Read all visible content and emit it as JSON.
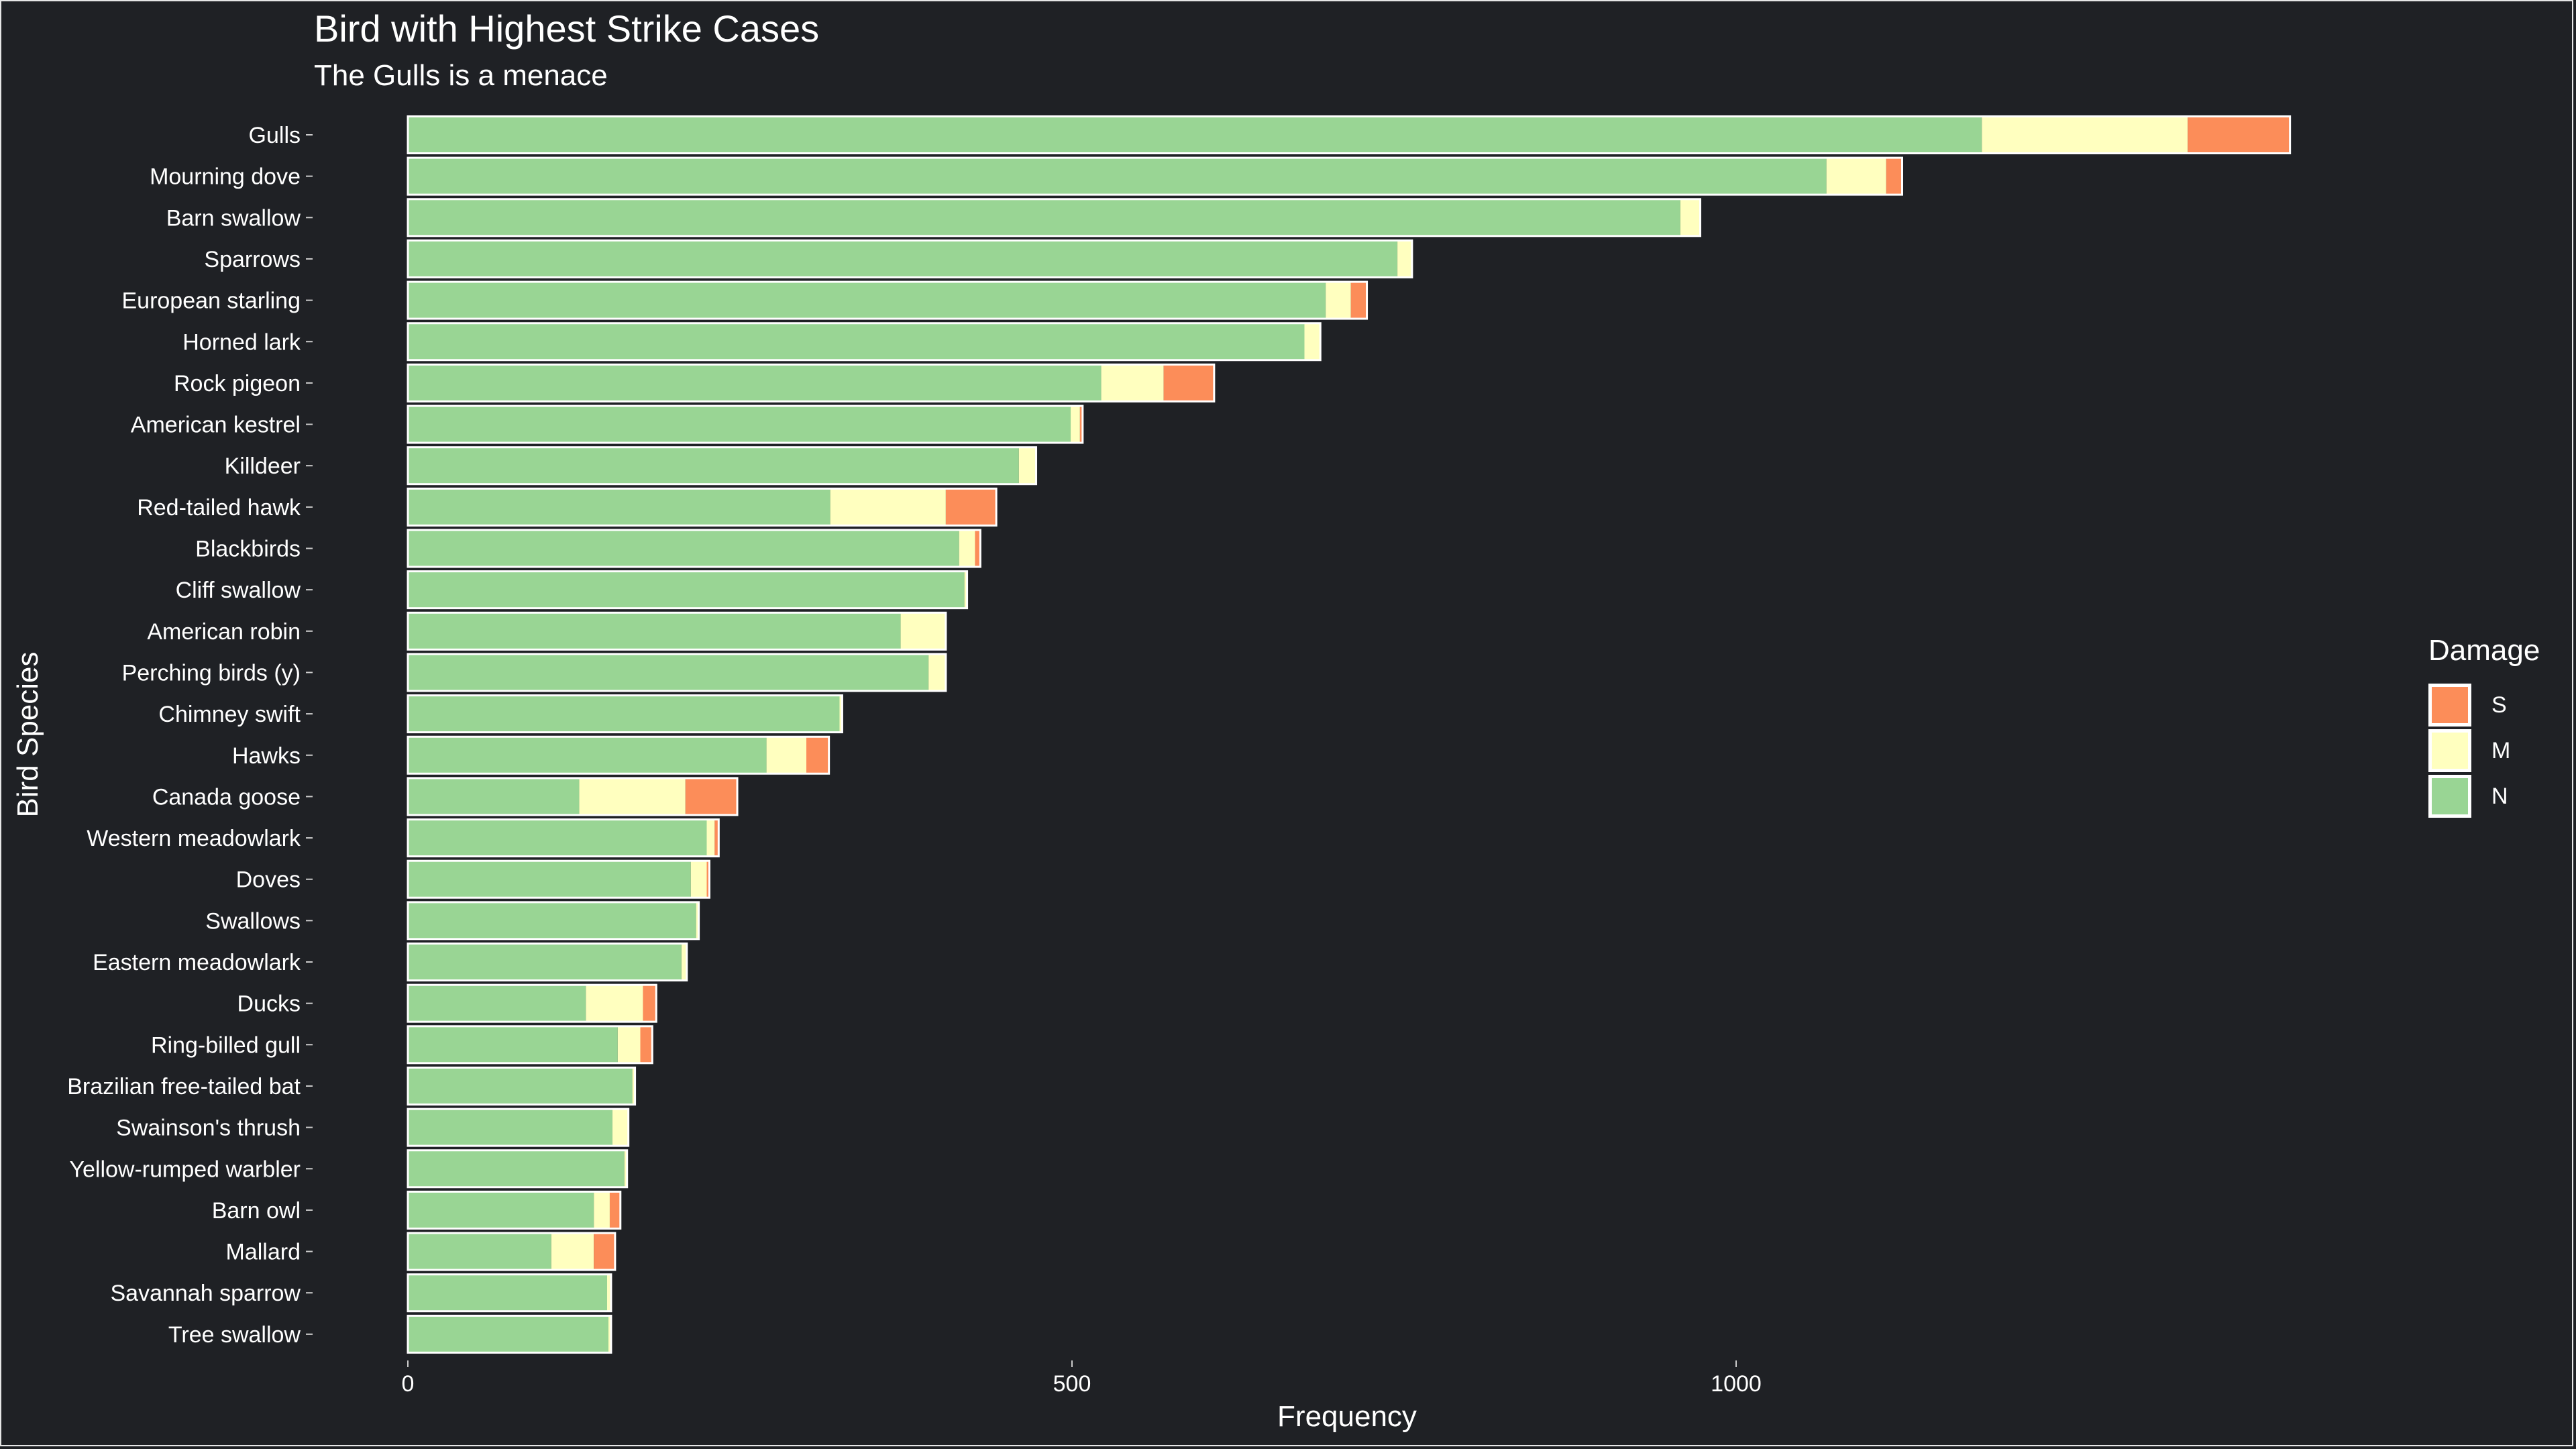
{
  "title": "Bird with Highest Strike Cases",
  "subtitle": "The Gulls is a menace",
  "chart_data": {
    "type": "bar",
    "orientation": "horizontal",
    "stacked": true,
    "xlabel": "Frequency",
    "ylabel": "Bird Species",
    "xlim": [
      0,
      1420
    ],
    "xticks": [
      0,
      500,
      1000
    ],
    "grid": false,
    "legend": {
      "title": "Damage",
      "position": "right"
    },
    "categories": [
      "Gulls",
      "Mourning dove",
      "Barn swallow",
      "Sparrows",
      "European starling",
      "Horned lark",
      "Rock pigeon",
      "American kestrel",
      "Killdeer",
      "Red-tailed hawk",
      "Blackbirds",
      "Cliff swallow",
      "American robin",
      "Perching birds (y)",
      "Chimney swift",
      "Hawks",
      "Canada goose",
      "Western meadowlark",
      "Doves",
      "Swallows",
      "Eastern meadowlark",
      "Ducks",
      "Ring-billed gull",
      "Brazilian free-tailed bat",
      "Swainson's thrush",
      "Yellow-rumped warbler",
      "Barn owl",
      "Mallard",
      "Savannah sparrow",
      "Tree swallow"
    ],
    "series": [
      {
        "name": "N",
        "color": "#99d594",
        "values": [
          1185,
          1068,
          958,
          745,
          691,
          675,
          522,
          499,
          460,
          318,
          415,
          419,
          371,
          392,
          325,
          270,
          129,
          225,
          213,
          217,
          206,
          134,
          158,
          169,
          154,
          163,
          140,
          108,
          150,
          151
        ]
      },
      {
        "name": "M",
        "color": "#ffffbf",
        "values": [
          155,
          45,
          15,
          11,
          19,
          12,
          47,
          7,
          13,
          87,
          12,
          2,
          34,
          13,
          2,
          30,
          80,
          6,
          12,
          2,
          4,
          43,
          17,
          2,
          12,
          2,
          12,
          32,
          3,
          2
        ]
      },
      {
        "name": "S",
        "color": "#fc8d59",
        "values": [
          77,
          12,
          0,
          0,
          12,
          0,
          38,
          2,
          0,
          38,
          4,
          0,
          0,
          0,
          0,
          17,
          39,
          3,
          2,
          0,
          0,
          10,
          9,
          0,
          0,
          0,
          8,
          16,
          0,
          0
        ]
      }
    ]
  }
}
